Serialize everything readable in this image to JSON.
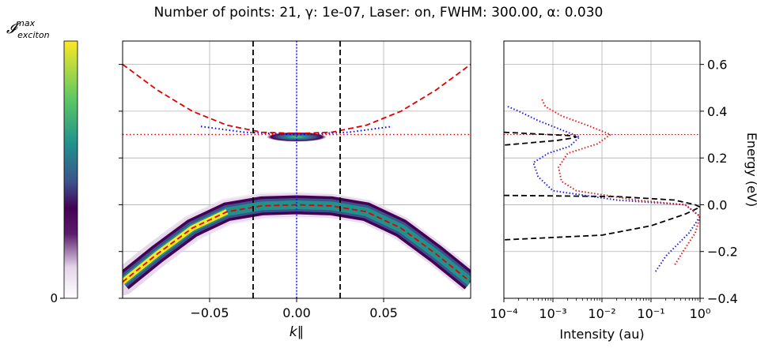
{
  "title": "Number of points: 21, γ: 1e-07, Laser: on, FWHM: 300.00, α: 0.030",
  "colors": {
    "dispersion": "#e00000",
    "mode_line": "#0000ff",
    "boundary": "#000000",
    "red_points": "#e41a1c",
    "blue_points": "#1f1fd8"
  },
  "chart_data": [
    {
      "type": "heatmap",
      "colormap": "viridis",
      "colorbar": {
        "label": "𝓘",
        "label_sup": "max",
        "label_sub": "exciton",
        "min_label": "0"
      },
      "xlabel": "k∥",
      "xticks": [
        "−0.05",
        "0.00",
        "0.05"
      ],
      "xtick_values": [
        -0.05,
        0,
        0.05
      ],
      "xlim": [
        -0.1,
        0.1
      ],
      "ylim": [
        -0.4,
        0.7
      ],
      "grid": true,
      "vertical_lines": {
        "dashed_black": [
          -0.025,
          0.025
        ],
        "dotted_blue": [
          0.0
        ]
      },
      "horizontal_line": {
        "style": "dotted-red",
        "y": 0.3
      },
      "upper_branch": {
        "k": [
          -0.1,
          -0.08,
          -0.06,
          -0.04,
          -0.02,
          0,
          0.02,
          0.04,
          0.06,
          0.08,
          0.1
        ],
        "e": [
          0.6,
          0.49,
          0.4,
          0.34,
          0.31,
          0.305,
          0.31,
          0.34,
          0.4,
          0.49,
          0.6
        ]
      },
      "lower_branch": {
        "k": [
          -0.1,
          -0.08,
          -0.06,
          -0.04,
          -0.02,
          0,
          0.02,
          0.04,
          0.06,
          0.08,
          0.1
        ],
        "e": [
          -0.33,
          -0.21,
          -0.1,
          -0.03,
          -0.005,
          0.0,
          -0.005,
          -0.03,
          -0.1,
          -0.21,
          -0.33
        ]
      },
      "blue_dotted": {
        "k": [
          -0.055,
          -0.03,
          0,
          0.03,
          0.055
        ],
        "e": [
          0.335,
          0.31,
          0.3,
          0.31,
          0.335
        ]
      }
    },
    {
      "type": "line",
      "xscale": "log",
      "xlabel": "Intensity (au)",
      "ylabel": "Energy (eV)",
      "xlim": [
        0.0001,
        1
      ],
      "ylim": [
        -0.4,
        0.7
      ],
      "xticks": [
        "10⁻⁴",
        "10⁻³",
        "10⁻²",
        "10⁻¹",
        "10⁰"
      ],
      "xtick_values": [
        0.0001,
        0.001,
        0.01,
        0.1,
        1
      ],
      "yticks": [
        "−0.4",
        "−0.2",
        "0.0",
        "0.2",
        "0.4",
        "0.6"
      ],
      "ytick_values": [
        -0.4,
        -0.2,
        0.0,
        0.2,
        0.4,
        0.6
      ],
      "grid": true,
      "horizontal_line": {
        "style": "dotted-red",
        "y": 0.3
      },
      "series": [
        {
          "style": "dashed-black",
          "x": [
            0.0001,
            0.0008,
            0.0025,
            0.003,
            0.0025,
            0.0012,
            0.0001
          ],
          "y": [
            0.31,
            0.3,
            0.295,
            0.29,
            0.285,
            0.275,
            0.255
          ]
        },
        {
          "style": "dashed-black",
          "x": [
            0.0001,
            0.02,
            0.3,
            0.8,
            1.0,
            0.5,
            0.1,
            0.01,
            0.0001
          ],
          "y": [
            0.04,
            0.035,
            0.02,
            0.0,
            -0.01,
            -0.04,
            -0.09,
            -0.13,
            -0.15
          ]
        },
        {
          "style": "dotted-blue",
          "x": [
            0.00012,
            0.0002,
            0.0005,
            0.0015,
            0.0035,
            0.0022,
            0.0008,
            0.0004,
            0.0005,
            0.001,
            0.02,
            0.5,
            1.0,
            0.6,
            0.2,
            0.12
          ],
          "y": [
            0.42,
            0.4,
            0.36,
            0.32,
            0.29,
            0.25,
            0.22,
            0.18,
            0.12,
            0.06,
            0.02,
            0.0,
            -0.05,
            -0.12,
            -0.22,
            -0.29
          ]
        },
        {
          "style": "dotted-red",
          "x": [
            0.0006,
            0.0007,
            0.0015,
            0.005,
            0.015,
            0.008,
            0.002,
            0.0013,
            0.0015,
            0.003,
            0.05,
            0.5,
            1.0,
            0.8,
            0.45,
            0.3
          ],
          "y": [
            0.45,
            0.42,
            0.38,
            0.34,
            0.3,
            0.26,
            0.22,
            0.16,
            0.1,
            0.06,
            0.02,
            0.0,
            -0.05,
            -0.12,
            -0.2,
            -0.26
          ]
        }
      ]
    }
  ]
}
